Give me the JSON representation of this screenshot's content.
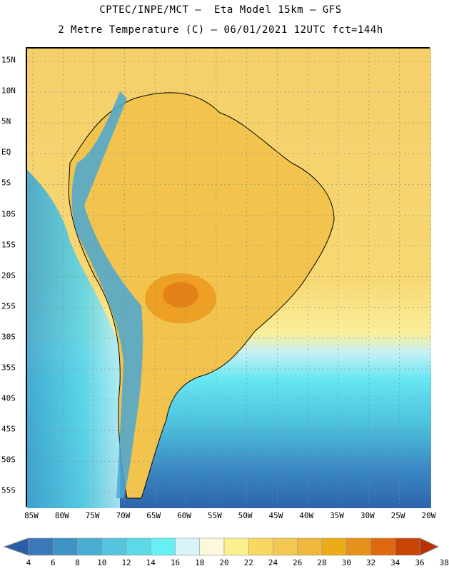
{
  "title_line1": "CPTEC/INPE/MCT –  Eta Model 15km – GFS",
  "title_line2": "2 Metre Temperature (C) – 06/01/2021 12UTC fct=144h",
  "lat_labels": [
    "15N",
    "10N",
    "5N",
    "EQ",
    "5S",
    "10S",
    "15S",
    "20S",
    "25S",
    "30S",
    "35S",
    "40S",
    "45S",
    "50S",
    "55S"
  ],
  "lon_labels": [
    "85W",
    "80W",
    "75W",
    "70W",
    "65W",
    "60W",
    "55W",
    "50W",
    "45W",
    "40W",
    "35W",
    "30W",
    "25W",
    "20W"
  ],
  "colorbar": {
    "labels": [
      "4",
      "6",
      "8",
      "10",
      "12",
      "14",
      "16",
      "18",
      "20",
      "22",
      "24",
      "26",
      "28",
      "30",
      "32",
      "34",
      "36",
      "38"
    ],
    "colors": [
      "#2a5da8",
      "#3a78b8",
      "#3f92c4",
      "#49aed2",
      "#55c4de",
      "#5dd8e6",
      "#66f0f4",
      "#d8f4fa",
      "#fdf7dc",
      "#fcef8e",
      "#f8d860",
      "#f2c850",
      "#eeb83c",
      "#ecac1a",
      "#e8901c",
      "#de6a10",
      "#c84404",
      "#b83206"
    ]
  }
}
